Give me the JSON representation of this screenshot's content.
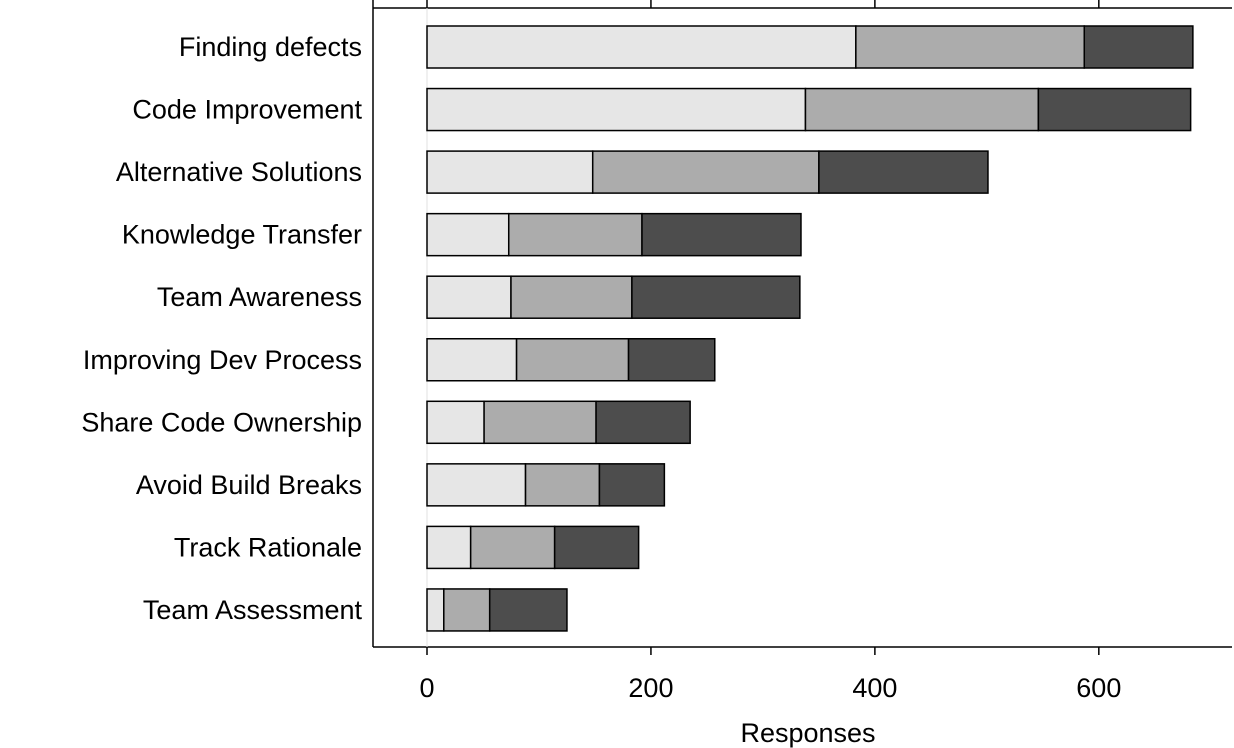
{
  "chart_data": {
    "type": "bar",
    "orientation": "horizontal",
    "stacked": true,
    "title": "",
    "xlabel": "Responses",
    "ylabel": "",
    "xlim": [
      -48,
      722
    ],
    "xticks": [
      0,
      200,
      400,
      600
    ],
    "grid": false,
    "legend": "none",
    "categories": [
      "Finding defects",
      "Code Improvement",
      "Alternative Solutions",
      "Knowledge Transfer",
      "Team Awareness",
      "Improving Dev Process",
      "Share Code Ownership",
      "Avoid Build Breaks",
      "Track Rationale",
      "Team Assessment"
    ],
    "series": [
      {
        "values": [
          383,
          338,
          148,
          73,
          75,
          80,
          51,
          88,
          39,
          15
        ],
        "color": "#e6e6e6"
      },
      {
        "values": [
          204,
          208,
          202,
          119,
          108,
          100,
          100,
          66,
          75,
          41
        ],
        "color": "#acacac"
      },
      {
        "values": [
          97,
          136,
          151,
          142,
          150,
          77,
          84,
          58,
          75,
          69
        ],
        "color": "#4d4d4d"
      }
    ]
  }
}
